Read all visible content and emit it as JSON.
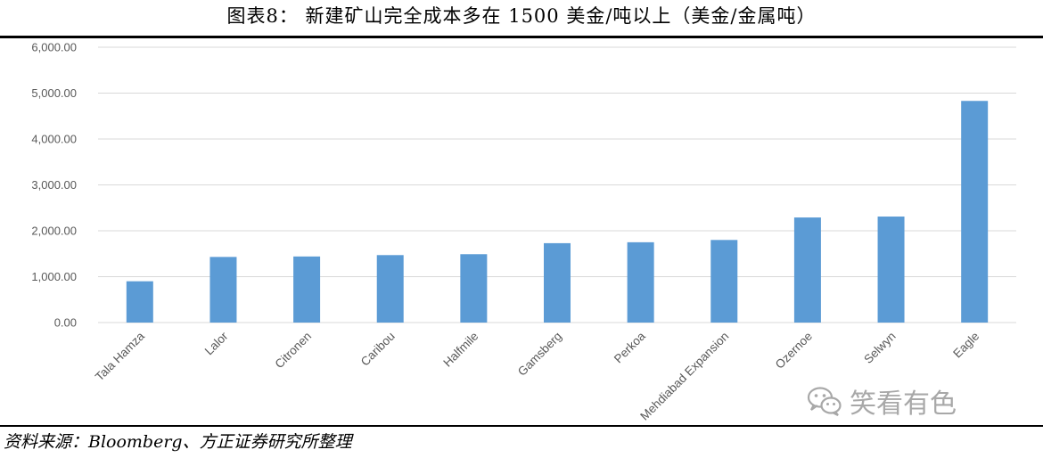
{
  "title": "图表8：  新建矿山完全成本多在 1500 美金/吨以上（美金/金属吨）",
  "source": "资料来源：Bloomberg、方正证券研究所整理",
  "watermark": {
    "text": "笑看有色",
    "icon": "wechat-icon"
  },
  "colors": {
    "bar": "#5b9bd5",
    "grid": "#d9d9d9",
    "tick": "#595959"
  },
  "chart_data": {
    "type": "bar",
    "categories": [
      "Tala Hamza",
      "Lalor",
      "Citronen",
      "Caribou",
      "Halfmile",
      "Gamsberg",
      "Perkoa",
      "Mehdiabad Expansion",
      "Ozernoe",
      "Selwyn",
      "Eagle"
    ],
    "values": [
      900,
      1430,
      1440,
      1470,
      1490,
      1730,
      1750,
      1800,
      2290,
      2310,
      4830
    ],
    "ylim": [
      0,
      6000
    ],
    "yticks": [
      "0.00",
      "1,000.00",
      "2,000.00",
      "3,000.00",
      "4,000.00",
      "5,000.00",
      "6,000.00"
    ],
    "grid": true,
    "legend": "none"
  }
}
